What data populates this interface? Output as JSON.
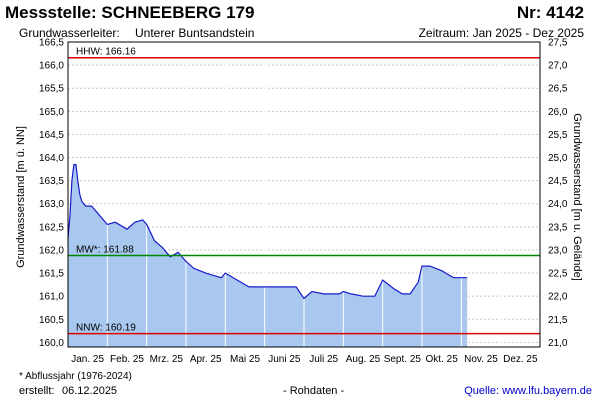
{
  "header": {
    "station": "Messstelle: SCHNEEBERG 179",
    "number": "Nr: 4142",
    "aquifer_label": "Grundwasserleiter:",
    "aquifer_value": "Unterer Buntsandstein",
    "period": "Zeitraum: Jan 2025 - Dez 2025"
  },
  "footer": {
    "footnote": "* Abflussjahr (1976-2024)",
    "created_label": "erstellt:",
    "created_value": "06.12.2025",
    "status": "- Rohdaten -",
    "source": "Quelle: www.lfu.bayern.de"
  },
  "chart_data": {
    "type": "area",
    "ylabel": "Grundwasserstand [m ü. NN]",
    "y2label": "Grundwasserstand [m u. Gelände]",
    "ylim": [
      159.9,
      166.5
    ],
    "y_ticks": [
      "160,0",
      "160,5",
      "161,0",
      "161,5",
      "162,0",
      "162,5",
      "163,0",
      "163,5",
      "164,0",
      "164,5",
      "165,0",
      "165,5",
      "166,0",
      "166,5"
    ],
    "y2_ticks": [
      "21,0",
      "21,5",
      "22,0",
      "22,5",
      "23,0",
      "23,5",
      "24,0",
      "24,5",
      "25,0",
      "25,5",
      "26,0",
      "26,5",
      "27,0",
      "27,5"
    ],
    "months": [
      "Jan. 25",
      "Feb. 25",
      "Mrz. 25",
      "Apr. 25",
      "Mai 25",
      "Juni 25",
      "Juli 25",
      "Aug. 25",
      "Sept. 25",
      "Okt. 25",
      "Nov. 25",
      "Dez. 25"
    ],
    "series": [
      {
        "x": [
          0.0,
          0.05,
          0.1,
          0.15,
          0.2,
          0.25,
          0.3,
          0.35,
          0.45,
          0.6,
          0.8,
          1.0,
          1.2,
          1.5,
          1.7,
          1.9,
          2.0,
          2.2,
          2.4,
          2.6,
          2.8,
          3.0,
          3.2,
          3.35,
          3.5,
          3.7,
          3.9,
          4.0,
          4.3,
          4.6,
          4.9,
          5.0,
          5.2,
          5.5,
          5.8,
          6.0,
          6.2,
          6.5,
          6.9,
          7.0,
          7.2,
          7.5,
          7.8,
          8.0,
          8.3,
          8.5,
          8.7,
          8.9,
          9.0,
          9.2,
          9.5,
          9.7,
          9.8,
          10.0,
          10.15
        ],
        "values": [
          162.25,
          162.75,
          163.5,
          163.85,
          163.85,
          163.5,
          163.2,
          163.05,
          162.95,
          162.95,
          162.75,
          162.55,
          162.6,
          162.45,
          162.6,
          162.65,
          162.55,
          162.2,
          162.05,
          161.85,
          161.95,
          161.75,
          161.6,
          161.55,
          161.5,
          161.45,
          161.4,
          161.5,
          161.35,
          161.2,
          161.2,
          161.2,
          161.2,
          161.2,
          161.2,
          160.95,
          161.1,
          161.05,
          161.05,
          161.1,
          161.05,
          161.0,
          161.0,
          161.35,
          161.15,
          161.05,
          161.05,
          161.3,
          161.65,
          161.65,
          161.55,
          161.45,
          161.4,
          161.4,
          161.4
        ]
      }
    ],
    "reference_lines": [
      {
        "label": "HHW: 166.16",
        "value": 166.16,
        "color": "#dd0000"
      },
      {
        "label": "MW*: 161.88",
        "value": 161.88,
        "color": "#008800"
      },
      {
        "label": "NNW: 160.19",
        "value": 160.19,
        "color": "#dd0000"
      }
    ],
    "area_color": "#a8c8f0",
    "line_color": "#1a1acc",
    "grid": true
  }
}
